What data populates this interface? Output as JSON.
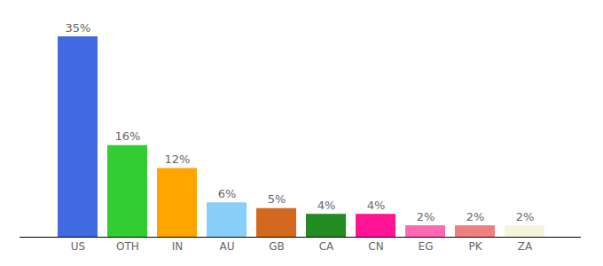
{
  "chart_data": {
    "type": "bar",
    "categories": [
      "US",
      "OTH",
      "IN",
      "AU",
      "GB",
      "CA",
      "CN",
      "EG",
      "PK",
      "ZA"
    ],
    "values": [
      35,
      16,
      12,
      6,
      5,
      4,
      4,
      2,
      2,
      2
    ],
    "value_labels": [
      "35%",
      "16%",
      "12%",
      "6%",
      "5%",
      "4%",
      "4%",
      "2%",
      "2%",
      "2%"
    ],
    "colors": [
      "#4169e1",
      "#32cd32",
      "#ffa500",
      "#87cefa",
      "#d2691e",
      "#228b22",
      "#ff1493",
      "#ff69b4",
      "#f08080",
      "#f5f5dc"
    ],
    "ylim": [
      0,
      35
    ],
    "yticks": [],
    "grid": false,
    "data_labels": true,
    "tick_labels": "x"
  }
}
